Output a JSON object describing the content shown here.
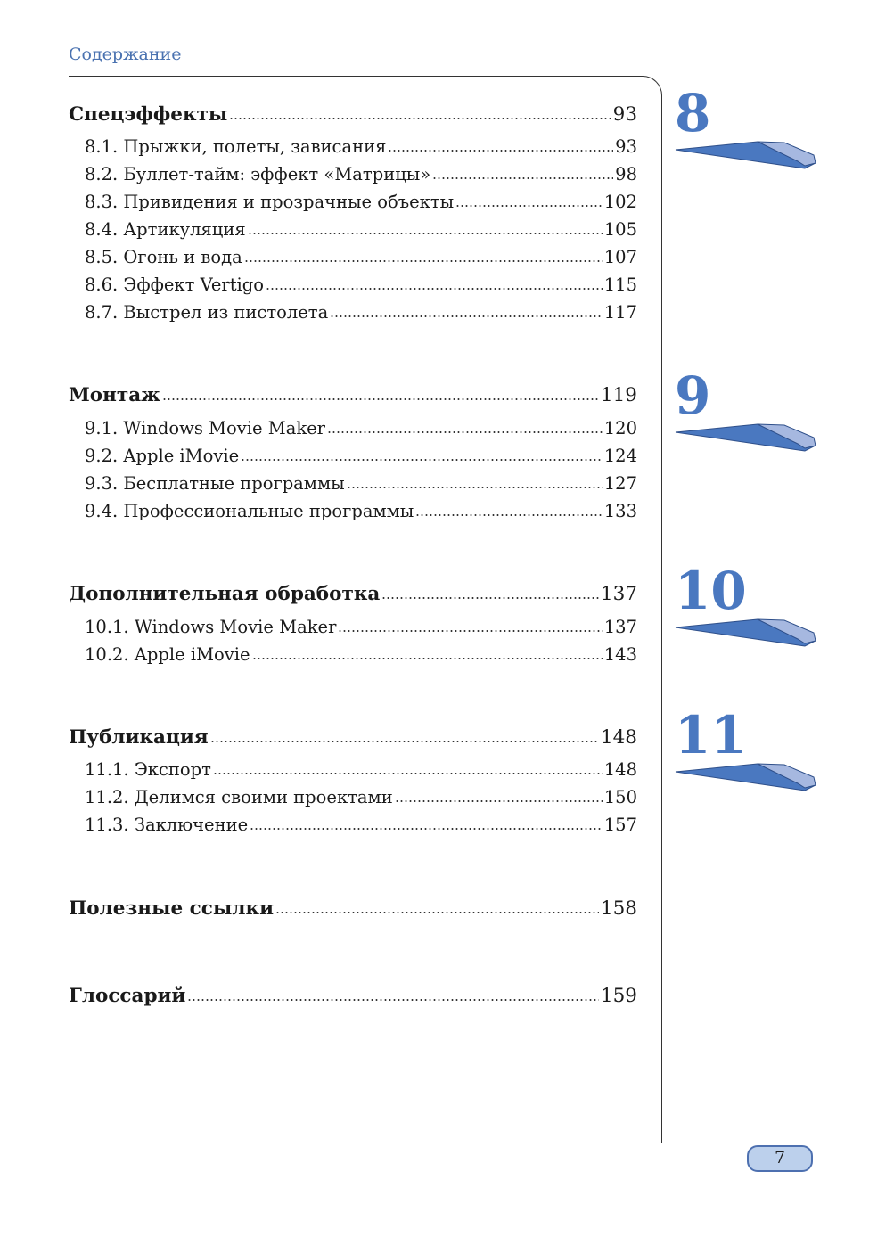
{
  "header": "Содержание",
  "page_number": "7",
  "accent_color": "#4a78c0",
  "chapters": [
    {
      "number": "8",
      "title": "Спецэффекты",
      "page": "93",
      "items": [
        {
          "title": "8.1. Прыжки, полеты, зависания",
          "page": "93"
        },
        {
          "title": "8.2. Буллет-тайм: эффект «Матрицы»",
          "page": "98"
        },
        {
          "title": "8.3. Привидения и прозрачные объекты",
          "page": "102"
        },
        {
          "title": "8.4. Артикуляция",
          "page": "105"
        },
        {
          "title": "8.5. Огонь и вода",
          "page": "107"
        },
        {
          "title": "8.6. Эффект Vertigo",
          "page": "115"
        },
        {
          "title": "8.7. Выстрел из пистолета",
          "page": "117"
        }
      ]
    },
    {
      "number": "9",
      "title": "Монтаж",
      "page": "119",
      "items": [
        {
          "title": "9.1. Windows Movie Maker",
          "page": "120"
        },
        {
          "title": "9.2. Apple iMovie",
          "page": "124"
        },
        {
          "title": "9.3. Бесплатные программы",
          "page": "127"
        },
        {
          "title": "9.4. Профессиональные программы",
          "page": "133"
        }
      ]
    },
    {
      "number": "10",
      "title": "Дополнительная обработка",
      "page": "137",
      "items": [
        {
          "title": "10.1. Windows Movie Maker",
          "page": "137"
        },
        {
          "title": "10.2. Apple iMovie",
          "page": "143"
        }
      ]
    },
    {
      "number": "11",
      "title": "Публикация",
      "page": "148",
      "items": [
        {
          "title": "11.1. Экспорт",
          "page": "148"
        },
        {
          "title": "11.2. Делимся своими проектами",
          "page": "150"
        },
        {
          "title": "11.3. Заключение",
          "page": "157"
        }
      ]
    },
    {
      "title": "Полезные ссылки",
      "page": "158",
      "items": []
    },
    {
      "title": "Глоссарий",
      "page": "159",
      "items": []
    }
  ]
}
